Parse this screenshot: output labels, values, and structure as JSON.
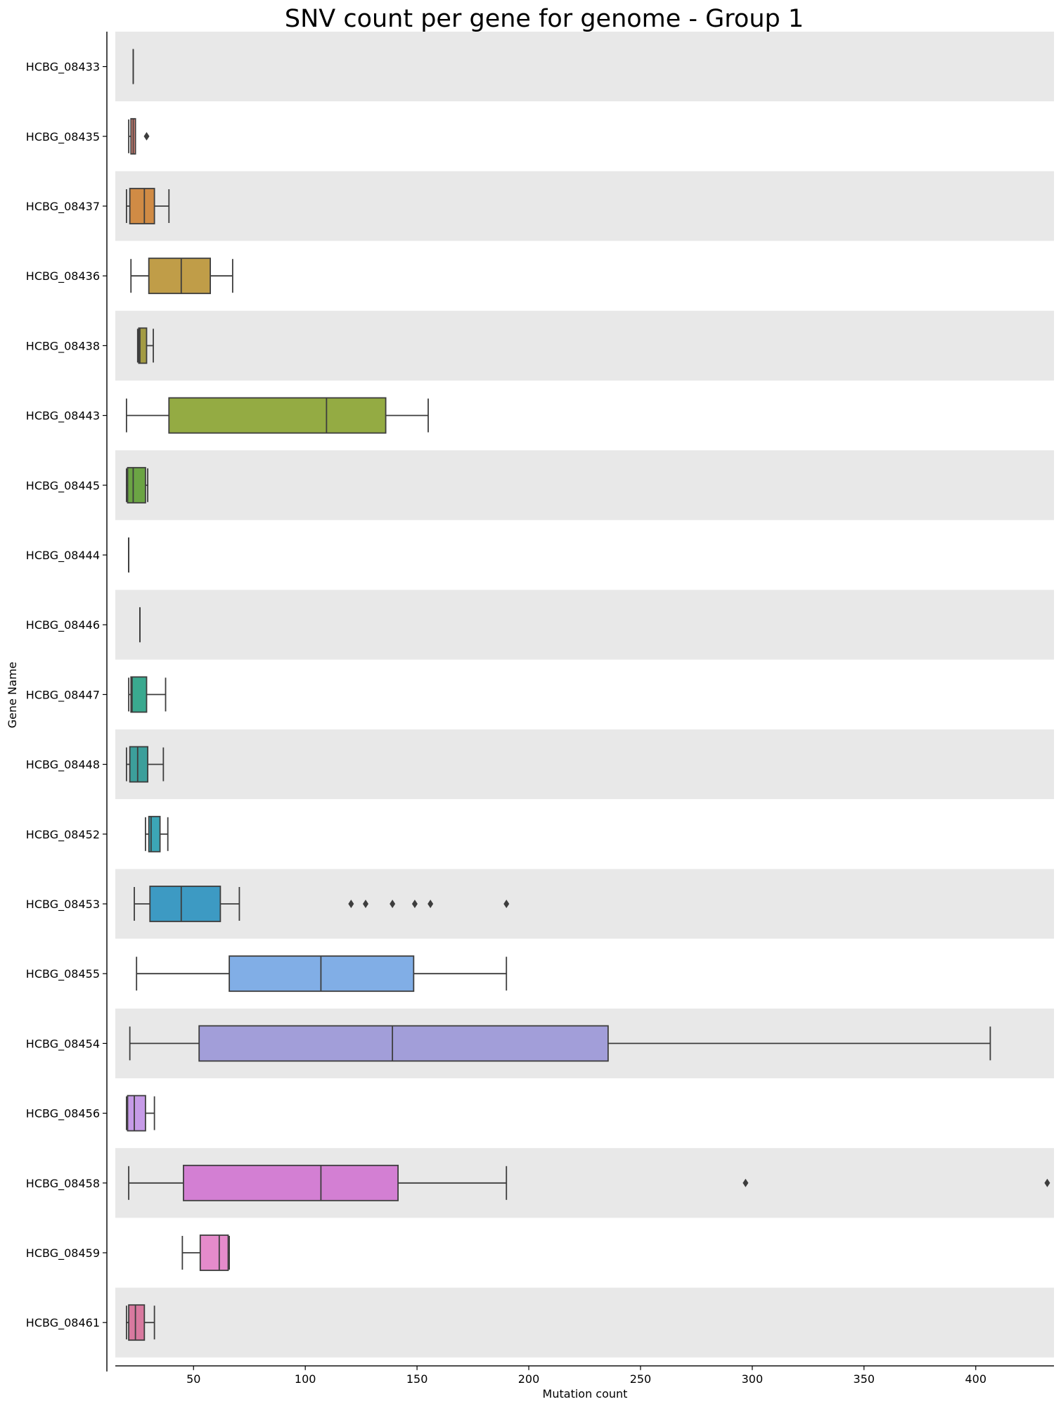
{
  "chart_data": {
    "type": "box",
    "orientation": "horizontal",
    "title": "SNV count per gene for genome - Group 1",
    "xlabel": "Mutation count",
    "ylabel": "Gene Name",
    "xlim": [
      15,
      435
    ],
    "xticks": [
      50,
      100,
      150,
      200,
      250,
      300,
      350,
      400
    ],
    "grid": false,
    "band_colors": [
      "#e8e8e8",
      "#ffffff"
    ],
    "series": [
      {
        "name": "HCBG_08433",
        "color": "#e8e8e8",
        "min": 23,
        "q1": 23,
        "median": 23,
        "q3": 23,
        "max": 23,
        "outliers": []
      },
      {
        "name": "HCBG_08435",
        "color": "#e58a7c",
        "min": 21,
        "q1": 22,
        "median": 23,
        "q3": 24,
        "max": 24,
        "outliers": [
          29
        ]
      },
      {
        "name": "HCBG_08437",
        "color": "#d08b45",
        "min": 20,
        "q1": 21.5,
        "median": 28,
        "q3": 32.5,
        "max": 39,
        "outliers": []
      },
      {
        "name": "HCBG_08436",
        "color": "#c09d48",
        "min": 22,
        "q1": 30,
        "median": 44.5,
        "q3": 57.5,
        "max": 67.5,
        "outliers": []
      },
      {
        "name": "HCBG_08438",
        "color": "#a39b43",
        "min": 25,
        "q1": 25.5,
        "median": 26,
        "q3": 29,
        "max": 32,
        "outliers": []
      },
      {
        "name": "HCBG_08443",
        "color": "#94ab43",
        "min": 20,
        "q1": 39,
        "median": 109.5,
        "q3": 136,
        "max": 155,
        "outliers": []
      },
      {
        "name": "HCBG_08445",
        "color": "#6ba444",
        "min": 20,
        "q1": 20.5,
        "median": 23,
        "q3": 28.5,
        "max": 29.5,
        "outliers": []
      },
      {
        "name": "HCBG_08444",
        "color": "#e8e8e8",
        "min": 21,
        "q1": 21,
        "median": 21,
        "q3": 21,
        "max": 21,
        "outliers": []
      },
      {
        "name": "HCBG_08446",
        "color": "#e8e8e8",
        "min": 26,
        "q1": 26,
        "median": 26,
        "q3": 26,
        "max": 26,
        "outliers": []
      },
      {
        "name": "HCBG_08447",
        "color": "#3aa98f",
        "min": 21,
        "q1": 22,
        "median": 22.5,
        "q3": 29,
        "max": 37.5,
        "outliers": []
      },
      {
        "name": "HCBG_08448",
        "color": "#3c9f9b",
        "min": 20,
        "q1": 21.5,
        "median": 25,
        "q3": 29.5,
        "max": 36.5,
        "outliers": []
      },
      {
        "name": "HCBG_08452",
        "color": "#3ca6b6",
        "min": 28.5,
        "q1": 30,
        "median": 31,
        "q3": 35,
        "max": 38.5,
        "outliers": []
      },
      {
        "name": "HCBG_08453",
        "color": "#3d9ac3",
        "min": 23.5,
        "q1": 30.5,
        "median": 44.5,
        "q3": 62,
        "max": 70.5,
        "outliers": [
          120.5,
          127,
          139,
          149,
          156,
          190
        ]
      },
      {
        "name": "HCBG_08455",
        "color": "#81aee6",
        "min": 24.5,
        "q1": 66,
        "median": 107,
        "q3": 148.5,
        "max": 190,
        "outliers": []
      },
      {
        "name": "HCBG_08454",
        "color": "#a29ed9",
        "min": 21.5,
        "q1": 52.5,
        "median": 139,
        "q3": 235.5,
        "max": 406.5,
        "outliers": []
      },
      {
        "name": "HCBG_08456",
        "color": "#c69be7",
        "min": 20,
        "q1": 20.5,
        "median": 23.5,
        "q3": 28.5,
        "max": 32.5,
        "outliers": []
      },
      {
        "name": "HCBG_08458",
        "color": "#d37fd3",
        "min": 21,
        "q1": 45.5,
        "median": 107,
        "q3": 141.5,
        "max": 190,
        "outliers": [
          297,
          432
        ]
      },
      {
        "name": "HCBG_08459",
        "color": "#e58bcb",
        "min": 45,
        "q1": 53,
        "median": 61.5,
        "q3": 65.5,
        "max": 66,
        "outliers": []
      },
      {
        "name": "HCBG_08461",
        "color": "#d8799f",
        "min": 20,
        "q1": 21,
        "median": 24,
        "q3": 28,
        "max": 32.5,
        "outliers": []
      }
    ]
  }
}
